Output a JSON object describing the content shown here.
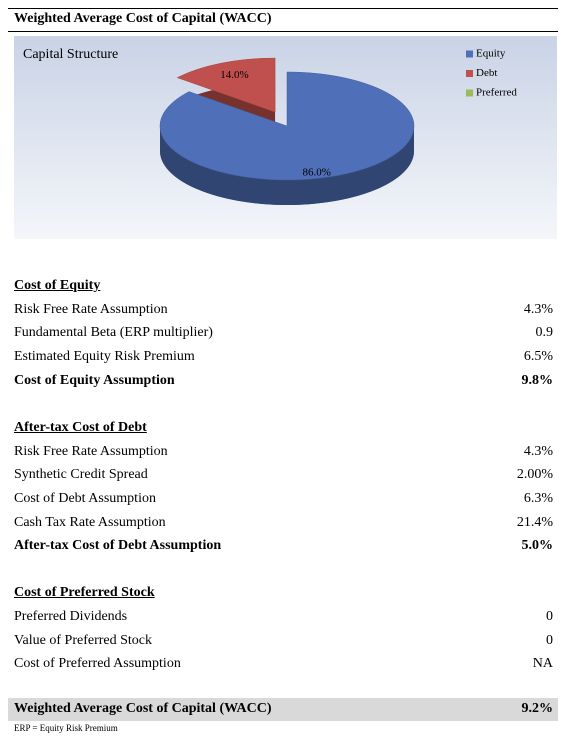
{
  "title": "Weighted Average Cost of Capital (WACC)",
  "chart_data": {
    "type": "pie",
    "title": "Capital Structure",
    "categories": [
      "Equity",
      "Debt",
      "Preferred"
    ],
    "values": [
      86.0,
      14.0,
      0
    ],
    "value_labels": [
      "86.0%",
      "14.0%",
      null
    ],
    "colors": [
      "#4f6fb8",
      "#c0504d",
      "#9bbb59"
    ],
    "legend": "upper right"
  },
  "sections": [
    {
      "heading": "Cost of Equity",
      "rows": [
        [
          "Risk Free Rate Assumption",
          "4.3%"
        ],
        [
          "Fundamental Beta (ERP multiplier)",
          "0.9"
        ],
        [
          "Estimated Equity Risk Premium",
          "6.5%"
        ]
      ],
      "total": [
        "Cost of Equity Assumption",
        "9.8%"
      ]
    },
    {
      "heading": "After-tax Cost of Debt",
      "rows": [
        [
          "Risk Free Rate Assumption",
          "4.3%"
        ],
        [
          "Synthetic Credit Spread",
          "2.00%"
        ],
        [
          "Cost of Debt Assumption",
          "6.3%"
        ],
        [
          "Cash Tax Rate Assumption",
          "21.4%"
        ]
      ],
      "total": [
        "After-tax Cost of Debt Assumption",
        "5.0%"
      ]
    },
    {
      "heading": "Cost of Preferred Stock",
      "rows": [
        [
          "Preferred Dividends",
          "0"
        ],
        [
          "Value of Preferred Stock",
          "0"
        ],
        [
          "Cost of Preferred Assumption",
          "NA"
        ]
      ]
    }
  ],
  "wacc": [
    "Weighted Average Cost of Capital (WACC)",
    "9.2%"
  ],
  "footnote": "ERP = Equity Risk Premium"
}
